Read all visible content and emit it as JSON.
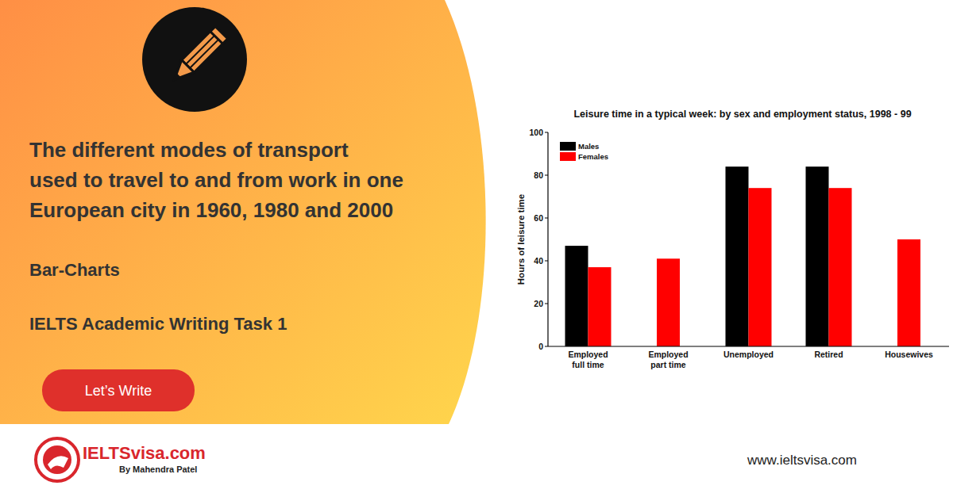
{
  "banner": {
    "heading_lines": [
      "The different modes of transport",
      "used to travel to and from work in one",
      "European city in 1960, 1980 and 2000"
    ],
    "chart_kind": "Bar-Charts",
    "exam": "IELTS Academic Writing Task 1",
    "button": "Let’s Write",
    "logo": "IELTSvisa.com",
    "byline": "By Mahendra Patel",
    "website": "www.ieltsvisa.com"
  },
  "chart_data": {
    "type": "bar",
    "title": "Leisure time in a typical week: by sex and employment status, 1998 - 99",
    "y_label": "Hours of leisure time",
    "categories": [
      "Employed full time",
      "Employed part time",
      "Unemployed",
      "Retired",
      "Housewives"
    ],
    "series": [
      {
        "name": "Males",
        "color": "#000000",
        "values": [
          47,
          null,
          84,
          84,
          null
        ]
      },
      {
        "name": "Females",
        "color": "#ff0000",
        "values": [
          37,
          41,
          74,
          74,
          50
        ]
      }
    ],
    "ylim": [
      0,
      100
    ],
    "yticks": [
      0,
      20,
      40,
      60,
      80,
      100
    ],
    "grid": false,
    "legend": "upper left"
  }
}
